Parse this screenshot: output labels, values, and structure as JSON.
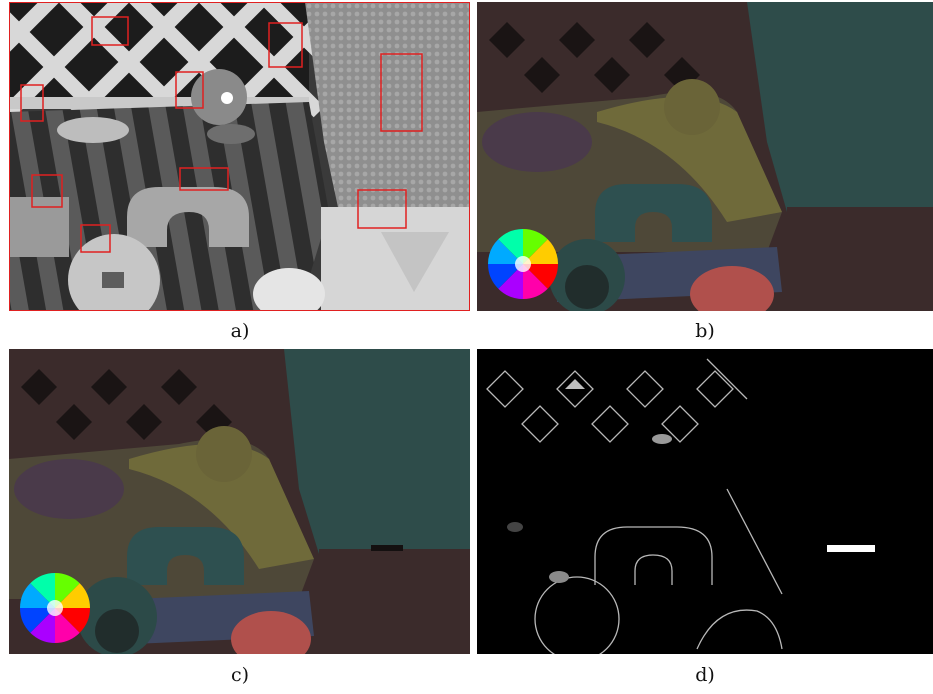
{
  "panels": [
    {
      "id": "a",
      "caption": "a)",
      "description_icon": "grayscale-scene-with-red-boxes"
    },
    {
      "id": "b",
      "caption": "b)",
      "description_icon": "flow-field-with-color-wheel"
    },
    {
      "id": "c",
      "caption": "c)",
      "description_icon": "flow-field-with-color-wheel"
    },
    {
      "id": "d",
      "caption": "d)",
      "description_icon": "error-map"
    }
  ],
  "colors": {
    "box": "#e02020",
    "flow_teal": "#2e4c4a",
    "flow_brown": "#3b2b2b",
    "flow_olive": "#6f6a3a",
    "flow_red": "#b0504c"
  }
}
